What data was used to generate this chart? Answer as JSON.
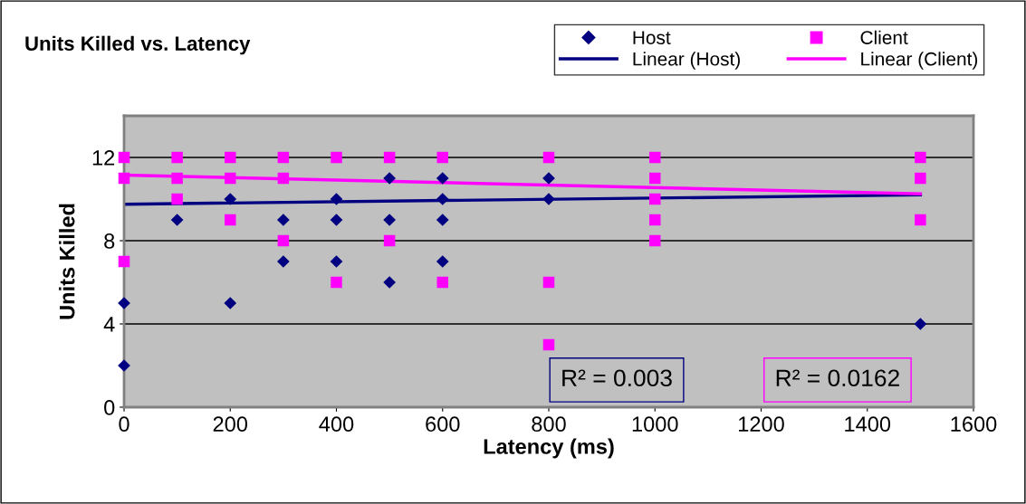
{
  "chart_data": {
    "type": "scatter",
    "title": "Units Killed vs. Latency",
    "xlabel": "Latency (ms)",
    "ylabel": "Units Killed",
    "xlim": [
      0,
      1600
    ],
    "xticks": [
      0,
      200,
      400,
      600,
      800,
      1000,
      1200,
      1400,
      1600
    ],
    "ylim": [
      0,
      14
    ],
    "yticks": [
      0,
      4,
      8,
      12
    ],
    "grid": "y",
    "legend": "top right",
    "series": [
      {
        "name": "Host",
        "marker": "diamond",
        "color": "#000080",
        "x": [
          0,
          0,
          100,
          200,
          200,
          300,
          300,
          400,
          400,
          400,
          500,
          500,
          500,
          600,
          600,
          600,
          600,
          800,
          800,
          1500
        ],
        "values": [
          5,
          2,
          9,
          10,
          5,
          9,
          7,
          10,
          9,
          7,
          11,
          9,
          6,
          11,
          10,
          9,
          7,
          11,
          10,
          4
        ]
      },
      {
        "name": "Client",
        "marker": "square",
        "color": "#ff00ff",
        "x": [
          0,
          0,
          0,
          100,
          100,
          100,
          200,
          200,
          200,
          300,
          300,
          300,
          400,
          400,
          500,
          500,
          600,
          600,
          800,
          800,
          800,
          1000,
          1000,
          1000,
          1000,
          1000,
          1500,
          1500,
          1500
        ],
        "values": [
          12,
          11,
          7,
          12,
          11,
          10,
          12,
          11,
          9,
          12,
          11,
          8,
          12,
          6,
          12,
          8,
          12,
          6,
          12,
          6,
          3,
          12,
          11,
          10,
          9,
          8,
          12,
          11,
          9
        ]
      },
      {
        "name": "Linear (Host)",
        "type": "line",
        "marker": "none",
        "color": "#000080",
        "x": [
          0,
          1500
        ],
        "values": [
          9.75,
          10.2
        ]
      },
      {
        "name": "Linear (Client)",
        "type": "line",
        "marker": "none",
        "color": "#ff00ff",
        "x": [
          0,
          1500
        ],
        "values": [
          11.15,
          10.25
        ]
      }
    ],
    "annotations": [
      "R² = 0.003",
      "R² = 0.0162"
    ]
  }
}
